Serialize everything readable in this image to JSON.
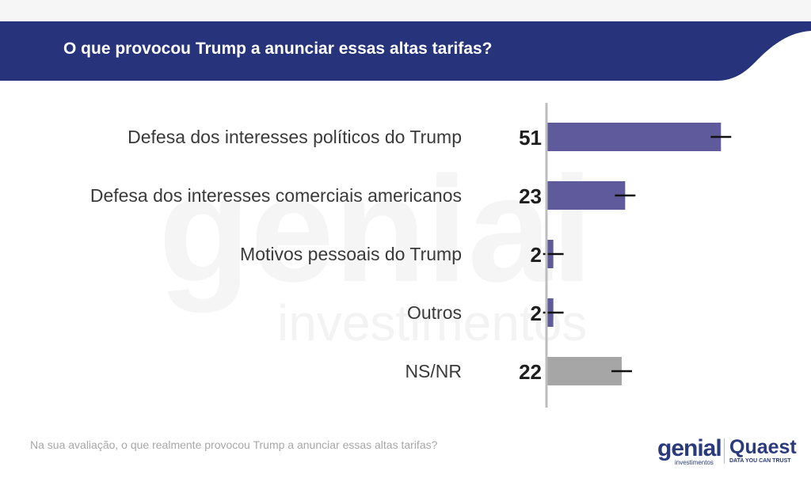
{
  "header": {
    "title": "O que provocou Trump a anunciar essas altas tarifas?",
    "background_color": "#27337a"
  },
  "watermark": {
    "line1": "genial",
    "line2": "investimentos"
  },
  "chart_data": {
    "type": "bar",
    "orientation": "horizontal",
    "title": "O que provocou Trump a anunciar essas altas tarifas?",
    "categories": [
      "Defesa dos interesses políticos do Trump",
      "Defesa dos interesses comerciais americanos",
      "Motivos pessoais do Trump",
      "Outros",
      "NS/NR"
    ],
    "values": [
      51,
      23,
      2,
      2,
      22
    ],
    "value_labels": [
      "51",
      "23",
      "2",
      "2",
      "22"
    ],
    "error_margin": 3,
    "bar_colors": [
      "#5f5a9c",
      "#5f5a9c",
      "#5f5a9c",
      "#5f5a9c",
      "#a6a6a6"
    ],
    "error_bar_color": "#111111",
    "axis_line_color": "#bdbdbd",
    "xlim": [
      0,
      60
    ],
    "grid": false,
    "legend": "none"
  },
  "footnote": "Na sua avaliação, o que realmente provocou Trump a anunciar essas altas tarifas?",
  "logos": {
    "genial": {
      "wordmark": "genial",
      "subtitle": "investimentos"
    },
    "quaest": {
      "wordmark": "Quaest",
      "tagline": "DATA YOU CAN TRUST"
    }
  }
}
